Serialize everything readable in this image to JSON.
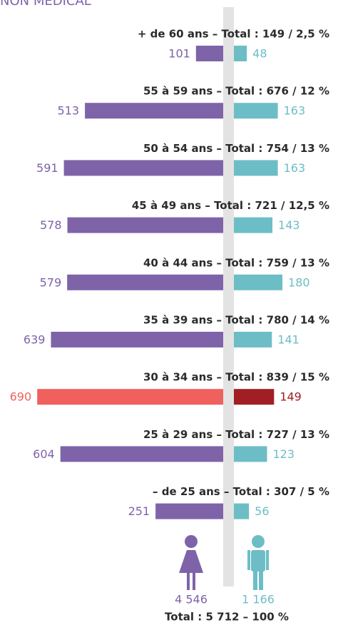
{
  "chart_data": {
    "type": "pyramid",
    "title": "NON MÉDICAL",
    "categories": [
      "+ de 60 ans – Total : 149 / 2,5 %",
      "55  à 59 ans – Total : 676 / 12 %",
      "50  à 54 ans – Total : 754 / 13 %",
      "45  à 49 ans – Total : 721 / 12,5 %",
      "40  à 44 ans – Total : 759 / 13 %",
      "35  à 39 ans – Total : 780 / 14 %",
      "30  à 34 ans – Total : 839 / 15 %",
      "25  à 29 ans – Total : 727 / 13 %",
      "– de 25 ans – Total : 307 / 5 %"
    ],
    "series": [
      {
        "side": "left",
        "color": "#7e63a9",
        "values": [
          101,
          513,
          591,
          578,
          579,
          639,
          690,
          604,
          251
        ],
        "colors": [
          "#7e63a9",
          "#7e63a9",
          "#7e63a9",
          "#7e63a9",
          "#7e63a9",
          "#7e63a9",
          "#f0605d",
          "#7e63a9",
          "#7e63a9"
        ]
      },
      {
        "side": "right",
        "color": "#6dbdc6",
        "values": [
          48,
          163,
          163,
          143,
          180,
          141,
          149,
          123,
          56
        ],
        "colors": [
          "#6dbdc6",
          "#6dbdc6",
          "#6dbdc6",
          "#6dbdc6",
          "#6dbdc6",
          "#6dbdc6",
          "#a01e24",
          "#6dbdc6",
          "#6dbdc6"
        ]
      }
    ],
    "total_labels": [
      "4 546",
      "1 166"
    ],
    "total": "Total : 5 712 – 100 %"
  }
}
